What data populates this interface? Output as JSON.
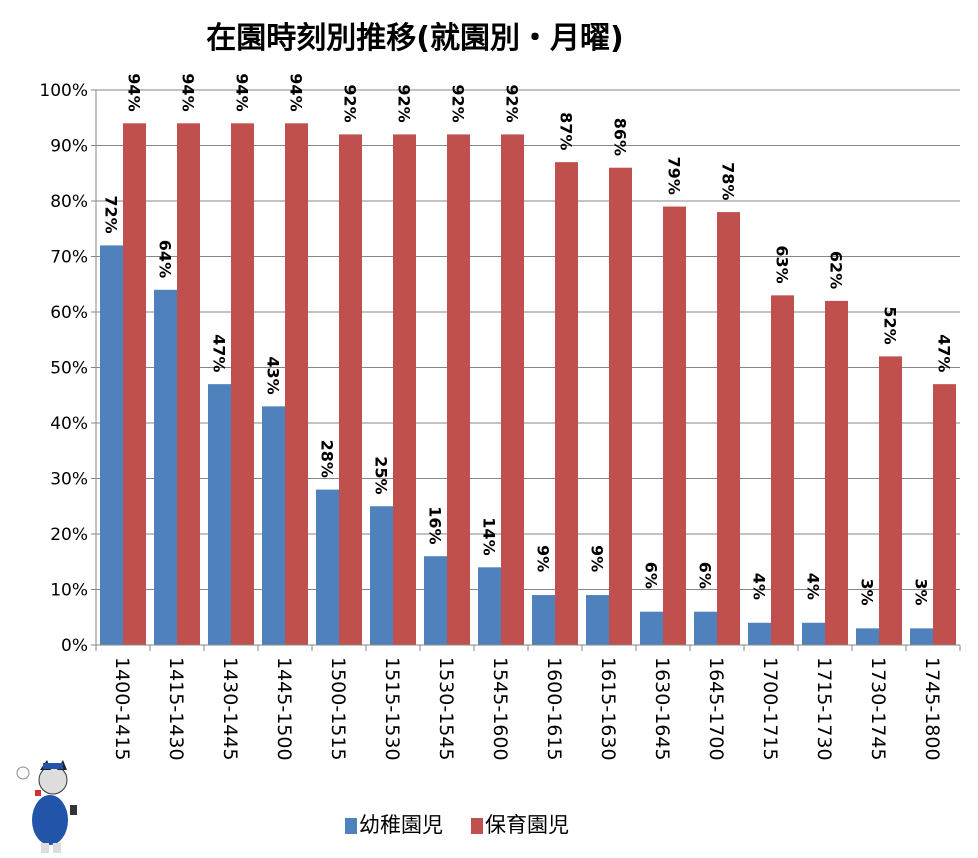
{
  "chart_data": {
    "type": "bar",
    "title": "在園時刻別推移(就園別・月曜)",
    "categories": [
      "1400-1415",
      "1415-1430",
      "1430-1445",
      "1445-1500",
      "1500-1515",
      "1515-1530",
      "1530-1545",
      "1545-1600",
      "1600-1615",
      "1615-1630",
      "1630-1645",
      "1645-1700",
      "1700-1715",
      "1715-1730",
      "1730-1745",
      "1745-1800"
    ],
    "series": [
      {
        "name": "幼稚園児",
        "color": "#4f81bd",
        "values": [
          72,
          64,
          47,
          43,
          28,
          25,
          16,
          14,
          9,
          9,
          6,
          6,
          4,
          4,
          3,
          3
        ]
      },
      {
        "name": "保育園児",
        "color": "#c0504d",
        "values": [
          94,
          94,
          94,
          94,
          92,
          92,
          92,
          92,
          87,
          86,
          79,
          78,
          63,
          62,
          52,
          47
        ]
      }
    ],
    "ylim": [
      0,
      100
    ],
    "yticks": [
      "0%",
      "10%",
      "20%",
      "30%",
      "40%",
      "50%",
      "60%",
      "70%",
      "80%",
      "90%",
      "100%"
    ],
    "grid": true,
    "legend": "bottom",
    "data_labels": "percent"
  }
}
